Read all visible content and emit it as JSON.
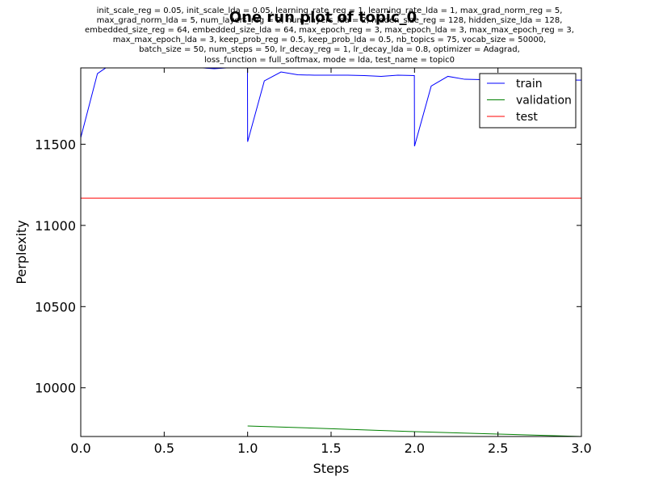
{
  "chart_data": {
    "type": "line",
    "title": "One run plot of topic_0",
    "subtitle_lines": [
      "init_scale_reg = 0.05, init_scale_lda = 0.05, learning_rate_reg = 1, learning_rate_lda = 1, max_grad_norm_reg = 5,",
      "max_grad_norm_lda = 5, num_layers_reg = 2, num_layers_lda = 2, hidden_size_reg = 128, hidden_size_lda = 128,",
      "embedded_size_reg = 64, embedded_size_lda = 64, max_epoch_reg = 3, max_epoch_lda = 3, max_max_epoch_reg = 3,",
      "max_max_epoch_lda = 3, keep_prob_reg = 0.5, keep_prob_lda = 0.5, nb_topics = 75, vocab_size = 50000,",
      "batch_size = 50, num_steps = 50, lr_decay_reg = 1, lr_decay_lda = 0.8, optimizer = Adagrad,",
      "loss_function = full_softmax, mode = lda, test_name = topic0"
    ],
    "xlabel": "Steps",
    "ylabel": "Perplexity",
    "xlim": [
      0.0,
      3.0
    ],
    "ylim": [
      9700,
      11970
    ],
    "xticks": [
      "0.0",
      "0.5",
      "1.0",
      "1.5",
      "2.0",
      "2.5",
      "3.0"
    ],
    "yticks": [
      "10000",
      "10500",
      "11000",
      "11500"
    ],
    "legend_placement": "top-right",
    "grid": false,
    "series": [
      {
        "name": "train",
        "color": "#0000ff",
        "points": [
          [
            0.0,
            11540
          ],
          [
            0.1,
            11935
          ],
          [
            0.15,
            11970
          ],
          [
            0.3,
            11975
          ],
          [
            0.5,
            11975
          ],
          [
            0.7,
            11972
          ],
          [
            0.8,
            11965
          ],
          [
            0.9,
            11972
          ],
          [
            0.999,
            11972
          ],
          [
            1.0,
            11515
          ],
          [
            1.1,
            11890
          ],
          [
            1.2,
            11945
          ],
          [
            1.3,
            11928
          ],
          [
            1.4,
            11925
          ],
          [
            1.6,
            11925
          ],
          [
            1.7,
            11923
          ],
          [
            1.8,
            11918
          ],
          [
            1.9,
            11925
          ],
          [
            1.999,
            11923
          ],
          [
            2.0,
            11488
          ],
          [
            2.1,
            11858
          ],
          [
            2.2,
            11918
          ],
          [
            2.3,
            11900
          ],
          [
            2.4,
            11898
          ],
          [
            2.6,
            11898
          ],
          [
            2.8,
            11896
          ],
          [
            3.0,
            11895
          ]
        ]
      },
      {
        "name": "validation",
        "color": "#008000",
        "points": [
          [
            1.0,
            9765
          ],
          [
            1.5,
            9748
          ],
          [
            2.0,
            9730
          ],
          [
            2.5,
            9715
          ],
          [
            3.0,
            9700
          ]
        ]
      },
      {
        "name": "test",
        "color": "#ff0000",
        "points": [
          [
            0.0,
            11168
          ],
          [
            3.0,
            11168
          ]
        ]
      }
    ]
  }
}
